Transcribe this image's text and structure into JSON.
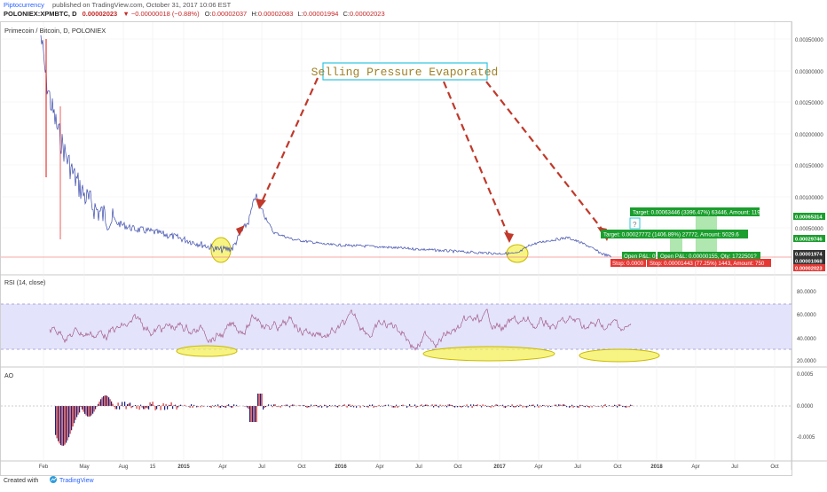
{
  "header": {
    "author": "Piptocurrency",
    "published": "published on TradingView.com, October 31, 2017 10:06 EST",
    "symbol": "POLONIEX:XPMBTC, D",
    "last_price": "0.00002023",
    "change": "▼ −0.00000018 (−0.88%)",
    "open_label": "O:",
    "open": "0.00002037",
    "high_label": "H:",
    "high": "0.00002083",
    "low_label": "L:",
    "low": "0.00001994",
    "close_label": "C:",
    "close": "0.00002023"
  },
  "main_pane": {
    "legend": "Primecoin / Bitcoin, D, POLONIEX",
    "annotation": "Selling Pressure Evaporated",
    "y_ticks": [
      "0.00350000",
      "0.00300000",
      "0.00250000",
      "0.00200000",
      "0.00150000",
      "0.00100000",
      "0.00050000"
    ],
    "price_tags": [
      {
        "text": "0.00065314",
        "color": "#1b9e2e"
      },
      {
        "text": "0.00029746",
        "color": "#1b9e2e"
      },
      {
        "text": "0.00001974",
        "color": "#333333"
      },
      {
        "text": "0.00001068",
        "color": "#333333"
      },
      {
        "text": "0.00002023",
        "color": "#e53935"
      }
    ],
    "targets": [
      {
        "text": "Target: 0.00063446 (3396.47%) 63446, Amount: 11992.03",
        "color": "#1b9e2e"
      },
      {
        "text": "Target: 0.00027772 (1406.89%) 27772, Amount: 5029.6",
        "color": "#1b9e2e"
      },
      {
        "text": "Open P&L: 0",
        "color": "#1b9e2e"
      },
      {
        "text": "Open P&L: 0.00000155, Qty: 1722501?",
        "color": "#1b9e2e"
      },
      {
        "text": "Stop: 0.0000",
        "color": "#e53935"
      },
      {
        "text": "Stop: 0.00001443 (77.25%) 1443, Amount: 750",
        "color": "#e53935"
      }
    ],
    "mini_icon": "?"
  },
  "rsi_pane": {
    "legend": "RSI (14, close)",
    "y_ticks": [
      "80.0000",
      "60.0000",
      "40.0000",
      "20.0000"
    ]
  },
  "ao_pane": {
    "legend": "AO",
    "y_ticks": [
      "0.0005",
      "0.0000",
      "-0.0005"
    ]
  },
  "time_axis": [
    "Feb",
    "May",
    "Aug",
    "15",
    "2015",
    "Apr",
    "Jul",
    "Oct",
    "2016",
    "Apr",
    "Jul",
    "Oct",
    "2017",
    "Apr",
    "Jul",
    "Oct",
    "2018",
    "Apr",
    "Jul",
    "Oct"
  ],
  "footer": {
    "created_with": "Created with",
    "brand": "TradingView"
  },
  "chart_data": {
    "type": "line",
    "series": [],
    "y_range_price": [
      0,
      0.0038
    ],
    "rsi_band": [
      30,
      70
    ],
    "y_range_rsi": [
      10,
      95
    ],
    "y_range_ao": [
      -0.0008,
      0.0006
    ]
  }
}
